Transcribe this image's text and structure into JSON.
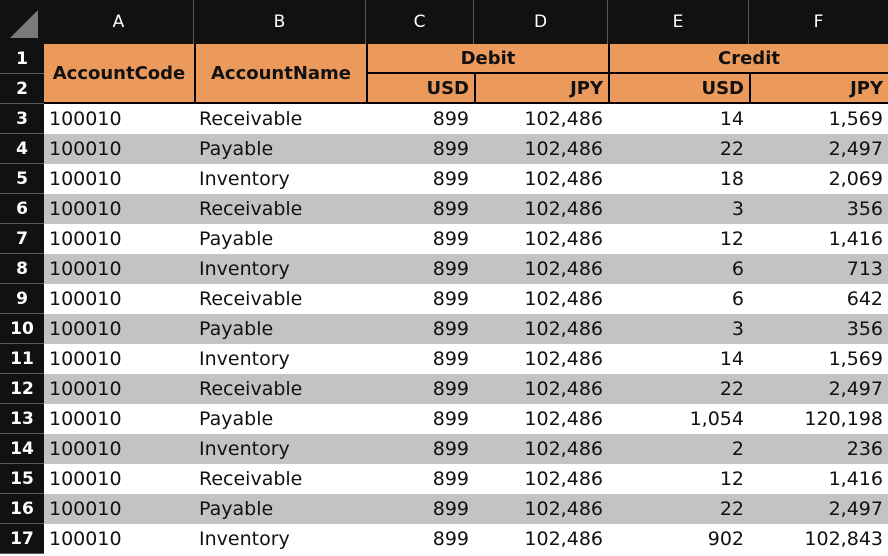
{
  "columns": [
    "A",
    "B",
    "C",
    "D",
    "E",
    "F"
  ],
  "row_numbers": [
    "1",
    "2",
    "3",
    "4",
    "5",
    "6",
    "7",
    "8",
    "9",
    "10",
    "11",
    "12",
    "13",
    "14",
    "15",
    "16",
    "17"
  ],
  "header": {
    "account_code": "AccountCode",
    "account_name": "AccountName",
    "debit": "Debit",
    "credit": "Credit",
    "usd": "USD",
    "jpy": "JPY"
  },
  "rows": [
    [
      "100010",
      "Receivable",
      "899",
      "102,486",
      "14",
      "1,569"
    ],
    [
      "100010",
      "Payable",
      "899",
      "102,486",
      "22",
      "2,497"
    ],
    [
      "100010",
      "Inventory",
      "899",
      "102,486",
      "18",
      "2,069"
    ],
    [
      "100010",
      "Receivable",
      "899",
      "102,486",
      "3",
      "356"
    ],
    [
      "100010",
      "Payable",
      "899",
      "102,486",
      "12",
      "1,416"
    ],
    [
      "100010",
      "Inventory",
      "899",
      "102,486",
      "6",
      "713"
    ],
    [
      "100010",
      "Receivable",
      "899",
      "102,486",
      "6",
      "642"
    ],
    [
      "100010",
      "Payable",
      "899",
      "102,486",
      "3",
      "356"
    ],
    [
      "100010",
      "Inventory",
      "899",
      "102,486",
      "14",
      "1,569"
    ],
    [
      "100010",
      "Receivable",
      "899",
      "102,486",
      "22",
      "2,497"
    ],
    [
      "100010",
      "Payable",
      "899",
      "102,486",
      "1,054",
      "120,198"
    ],
    [
      "100010",
      "Inventory",
      "899",
      "102,486",
      "2",
      "236"
    ],
    [
      "100010",
      "Receivable",
      "899",
      "102,486",
      "12",
      "1,416"
    ],
    [
      "100010",
      "Payable",
      "899",
      "102,486",
      "22",
      "2,497"
    ],
    [
      "100010",
      "Inventory",
      "899",
      "102,486",
      "902",
      "102,843"
    ]
  ],
  "colors": {
    "header_fill": "#ec9a5b",
    "band_gray": "#c3c3c3",
    "chrome": "#111111"
  }
}
